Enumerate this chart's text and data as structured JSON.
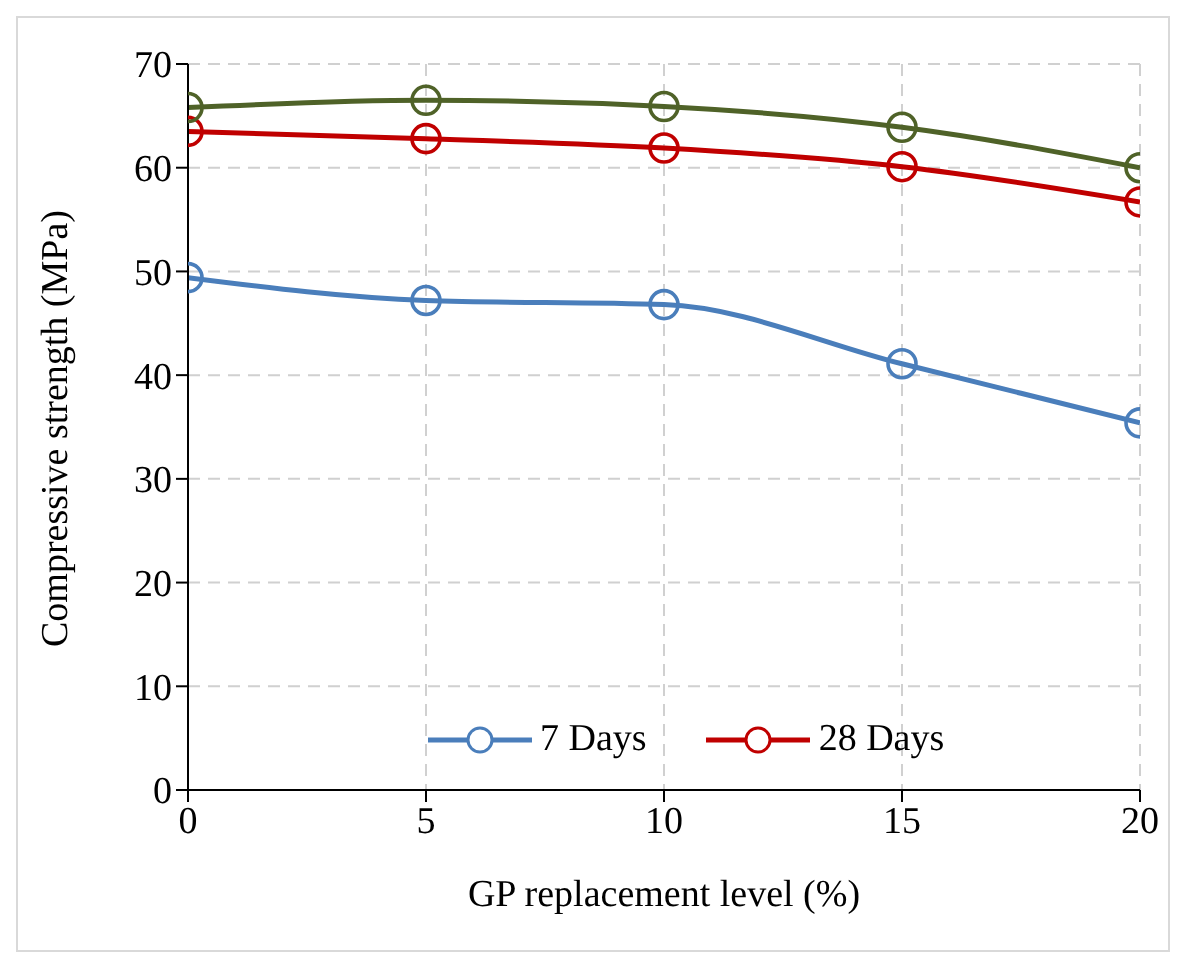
{
  "chart_data": {
    "type": "line",
    "xlabel": "GP replacement level (%)",
    "ylabel": "Compressive strength (MPa)",
    "x": [
      0,
      5,
      10,
      15,
      20
    ],
    "series": [
      {
        "name": "7 Days",
        "color": "#4a7ebb",
        "values": [
          49.4,
          47.2,
          46.8,
          41.1,
          35.4
        ]
      },
      {
        "name": "28 Days",
        "color": "#c00000",
        "values": [
          63.5,
          62.8,
          61.9,
          60.1,
          56.7
        ]
      },
      {
        "color": "#4f6228",
        "values": [
          65.8,
          66.5,
          65.9,
          63.9,
          60.0
        ]
      }
    ],
    "xlim": [
      0,
      20
    ],
    "xticks": [
      0,
      5,
      10,
      15,
      20
    ],
    "ylim": [
      0,
      70
    ],
    "yticks": [
      0,
      10,
      20,
      30,
      40,
      50,
      60,
      70
    ],
    "grid": true,
    "legend": "bottom",
    "marker": "circle",
    "line_style": "solid"
  }
}
